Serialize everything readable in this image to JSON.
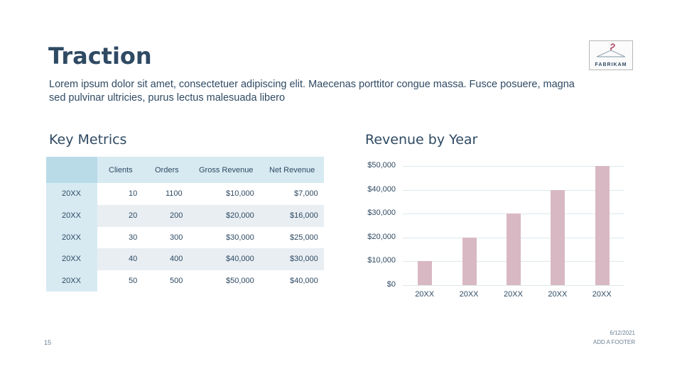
{
  "title": "Traction",
  "subtitle": "Lorem ipsum dolor sit amet, consectetuer adipiscing elit. Maecenas porttitor congue massa. Fusce posuere, magna sed pulvinar ultricies, purus lectus malesuada libero",
  "logo": {
    "text": "FABRIKAM"
  },
  "key_metrics": {
    "heading": "Key Metrics",
    "columns": [
      "Clients",
      "Orders",
      "Gross Revenue",
      "Net Revenue"
    ],
    "rows": [
      {
        "label": "20XX",
        "cells": [
          "10",
          "1100",
          "$10,000",
          "$7,000"
        ]
      },
      {
        "label": "20XX",
        "cells": [
          "20",
          "200",
          "$20,000",
          "$16,000"
        ]
      },
      {
        "label": "20XX",
        "cells": [
          "30",
          "300",
          "$30,000",
          "$25,000"
        ]
      },
      {
        "label": "20XX",
        "cells": [
          "40",
          "400",
          "$40,000",
          "$30,000"
        ]
      },
      {
        "label": "20XX",
        "cells": [
          "50",
          "500",
          "$50,000",
          "$40,000"
        ]
      }
    ]
  },
  "revenue": {
    "heading": "Revenue by Year"
  },
  "chart_data": {
    "type": "bar",
    "title": "Revenue by Year",
    "categories": [
      "20XX",
      "20XX",
      "20XX",
      "20XX",
      "20XX"
    ],
    "values": [
      10000,
      20000,
      30000,
      40000,
      50000
    ],
    "ylim": [
      0,
      50000
    ],
    "yticks": [
      "$0",
      "$10,000",
      "$20,000",
      "$30,000",
      "$40,000",
      "$50,000"
    ],
    "grid": true,
    "bar_color": "#d8b8c3"
  },
  "footer": {
    "slide_number": "15",
    "date": "6/12/2021",
    "text": "ADD A FOOTER"
  }
}
